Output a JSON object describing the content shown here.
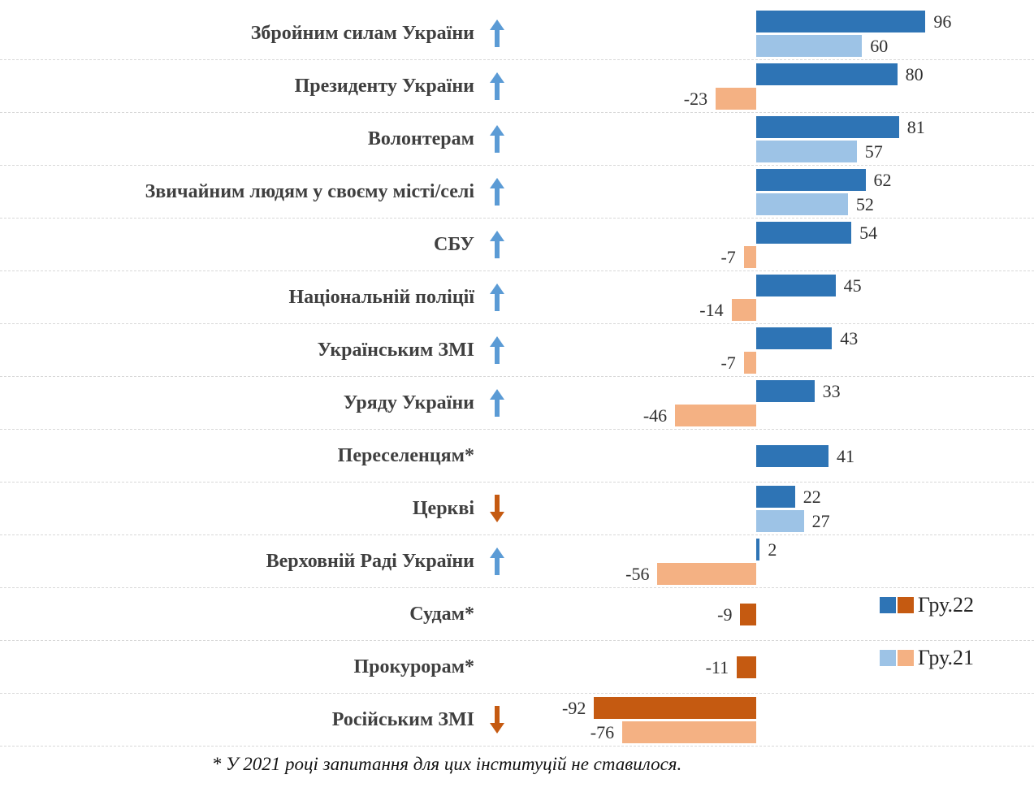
{
  "chart_data": {
    "type": "bar",
    "orientation": "horizontal",
    "title": "",
    "xlabel": "",
    "ylabel": "",
    "xlim": [
      -100,
      160
    ],
    "grid": "dashed-horizontal",
    "legend_position": "bottom-right",
    "series_names": [
      "Гру.22",
      "Гру.21"
    ],
    "legend": [
      {
        "label": "Гру.22"
      },
      {
        "label": "Гру.21"
      }
    ],
    "categories": [
      {
        "label": "Збройним силам України",
        "trend": "up",
        "dec22": 96,
        "dec21": 60
      },
      {
        "label": "Президенту України",
        "trend": "up",
        "dec22": 80,
        "dec21": -23
      },
      {
        "label": "Волонтерам",
        "trend": "up",
        "dec22": 81,
        "dec21": 57
      },
      {
        "label": "Звичайним людям у своєму місті/селі",
        "trend": "up",
        "dec22": 62,
        "dec21": 52
      },
      {
        "label": "СБУ",
        "trend": "up",
        "dec22": 54,
        "dec21": -7
      },
      {
        "label": "Національній поліції",
        "trend": "up",
        "dec22": 45,
        "dec21": -14
      },
      {
        "label": "Українським ЗМІ",
        "trend": "up",
        "dec22": 43,
        "dec21": -7
      },
      {
        "label": "Уряду України",
        "trend": "up",
        "dec22": 33,
        "dec21": -46
      },
      {
        "label": "Переселенцям*",
        "trend": null,
        "dec22": 41,
        "dec21": null
      },
      {
        "label": "Церкві",
        "trend": "down",
        "dec22": 22,
        "dec21": 27
      },
      {
        "label": "Верховній Раді України",
        "trend": "up",
        "dec22": 2,
        "dec21": -56
      },
      {
        "label": "Судам*",
        "trend": null,
        "dec22": -9,
        "dec21": null
      },
      {
        "label": "Прокурорам*",
        "trend": null,
        "dec22": -11,
        "dec21": null
      },
      {
        "label": "Російським ЗМІ",
        "trend": "down",
        "dec22": -92,
        "dec21": -76
      }
    ],
    "colors": {
      "dec22_positive": "#2E74B5",
      "dec22_negative": "#C55A11",
      "dec21_positive": "#9DC3E6",
      "dec21_negative": "#F4B183",
      "up_arrow": "#5B9BD5",
      "down_arrow": "#C55A11",
      "gridline": "#d8d8d8"
    }
  },
  "footnote": "* У 2021 році запитання для цих інституцій не ставилося."
}
